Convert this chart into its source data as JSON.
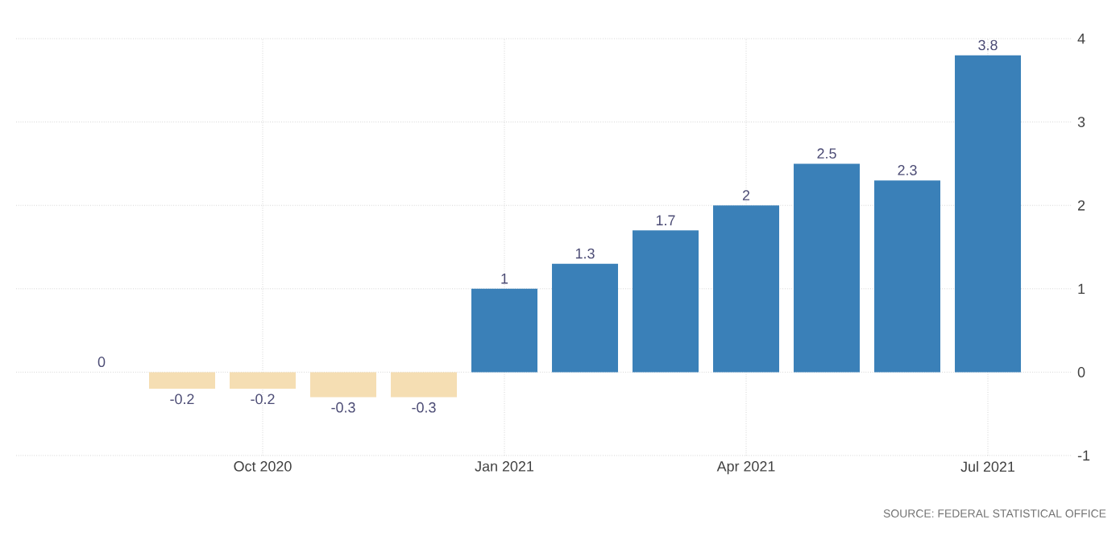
{
  "chart_data": {
    "type": "bar",
    "categories": [
      null,
      null,
      "Oct 2020",
      null,
      null,
      "Jan 2021",
      null,
      null,
      "Apr 2021",
      null,
      null,
      "Jul 2021"
    ],
    "values": [
      0,
      -0.2,
      -0.2,
      -0.3,
      -0.3,
      1,
      1.3,
      1.7,
      2,
      2.5,
      2.3,
      3.8
    ],
    "colors": [
      "#f5deb3",
      "#f5deb3",
      "#f5deb3",
      "#f5deb3",
      "#f5deb3",
      "#3a80b8",
      "#3a80b8",
      "#3a80b8",
      "#3a80b8",
      "#3a80b8",
      "#3a80b8",
      "#3a80b8"
    ],
    "ylim": [
      -1,
      4
    ],
    "yticks": [
      -1,
      0,
      1,
      2,
      3,
      4
    ],
    "grid": true,
    "data_labels": true,
    "annotations": [
      "SOURCE: FEDERAL STATISTICAL OFFICE"
    ]
  }
}
